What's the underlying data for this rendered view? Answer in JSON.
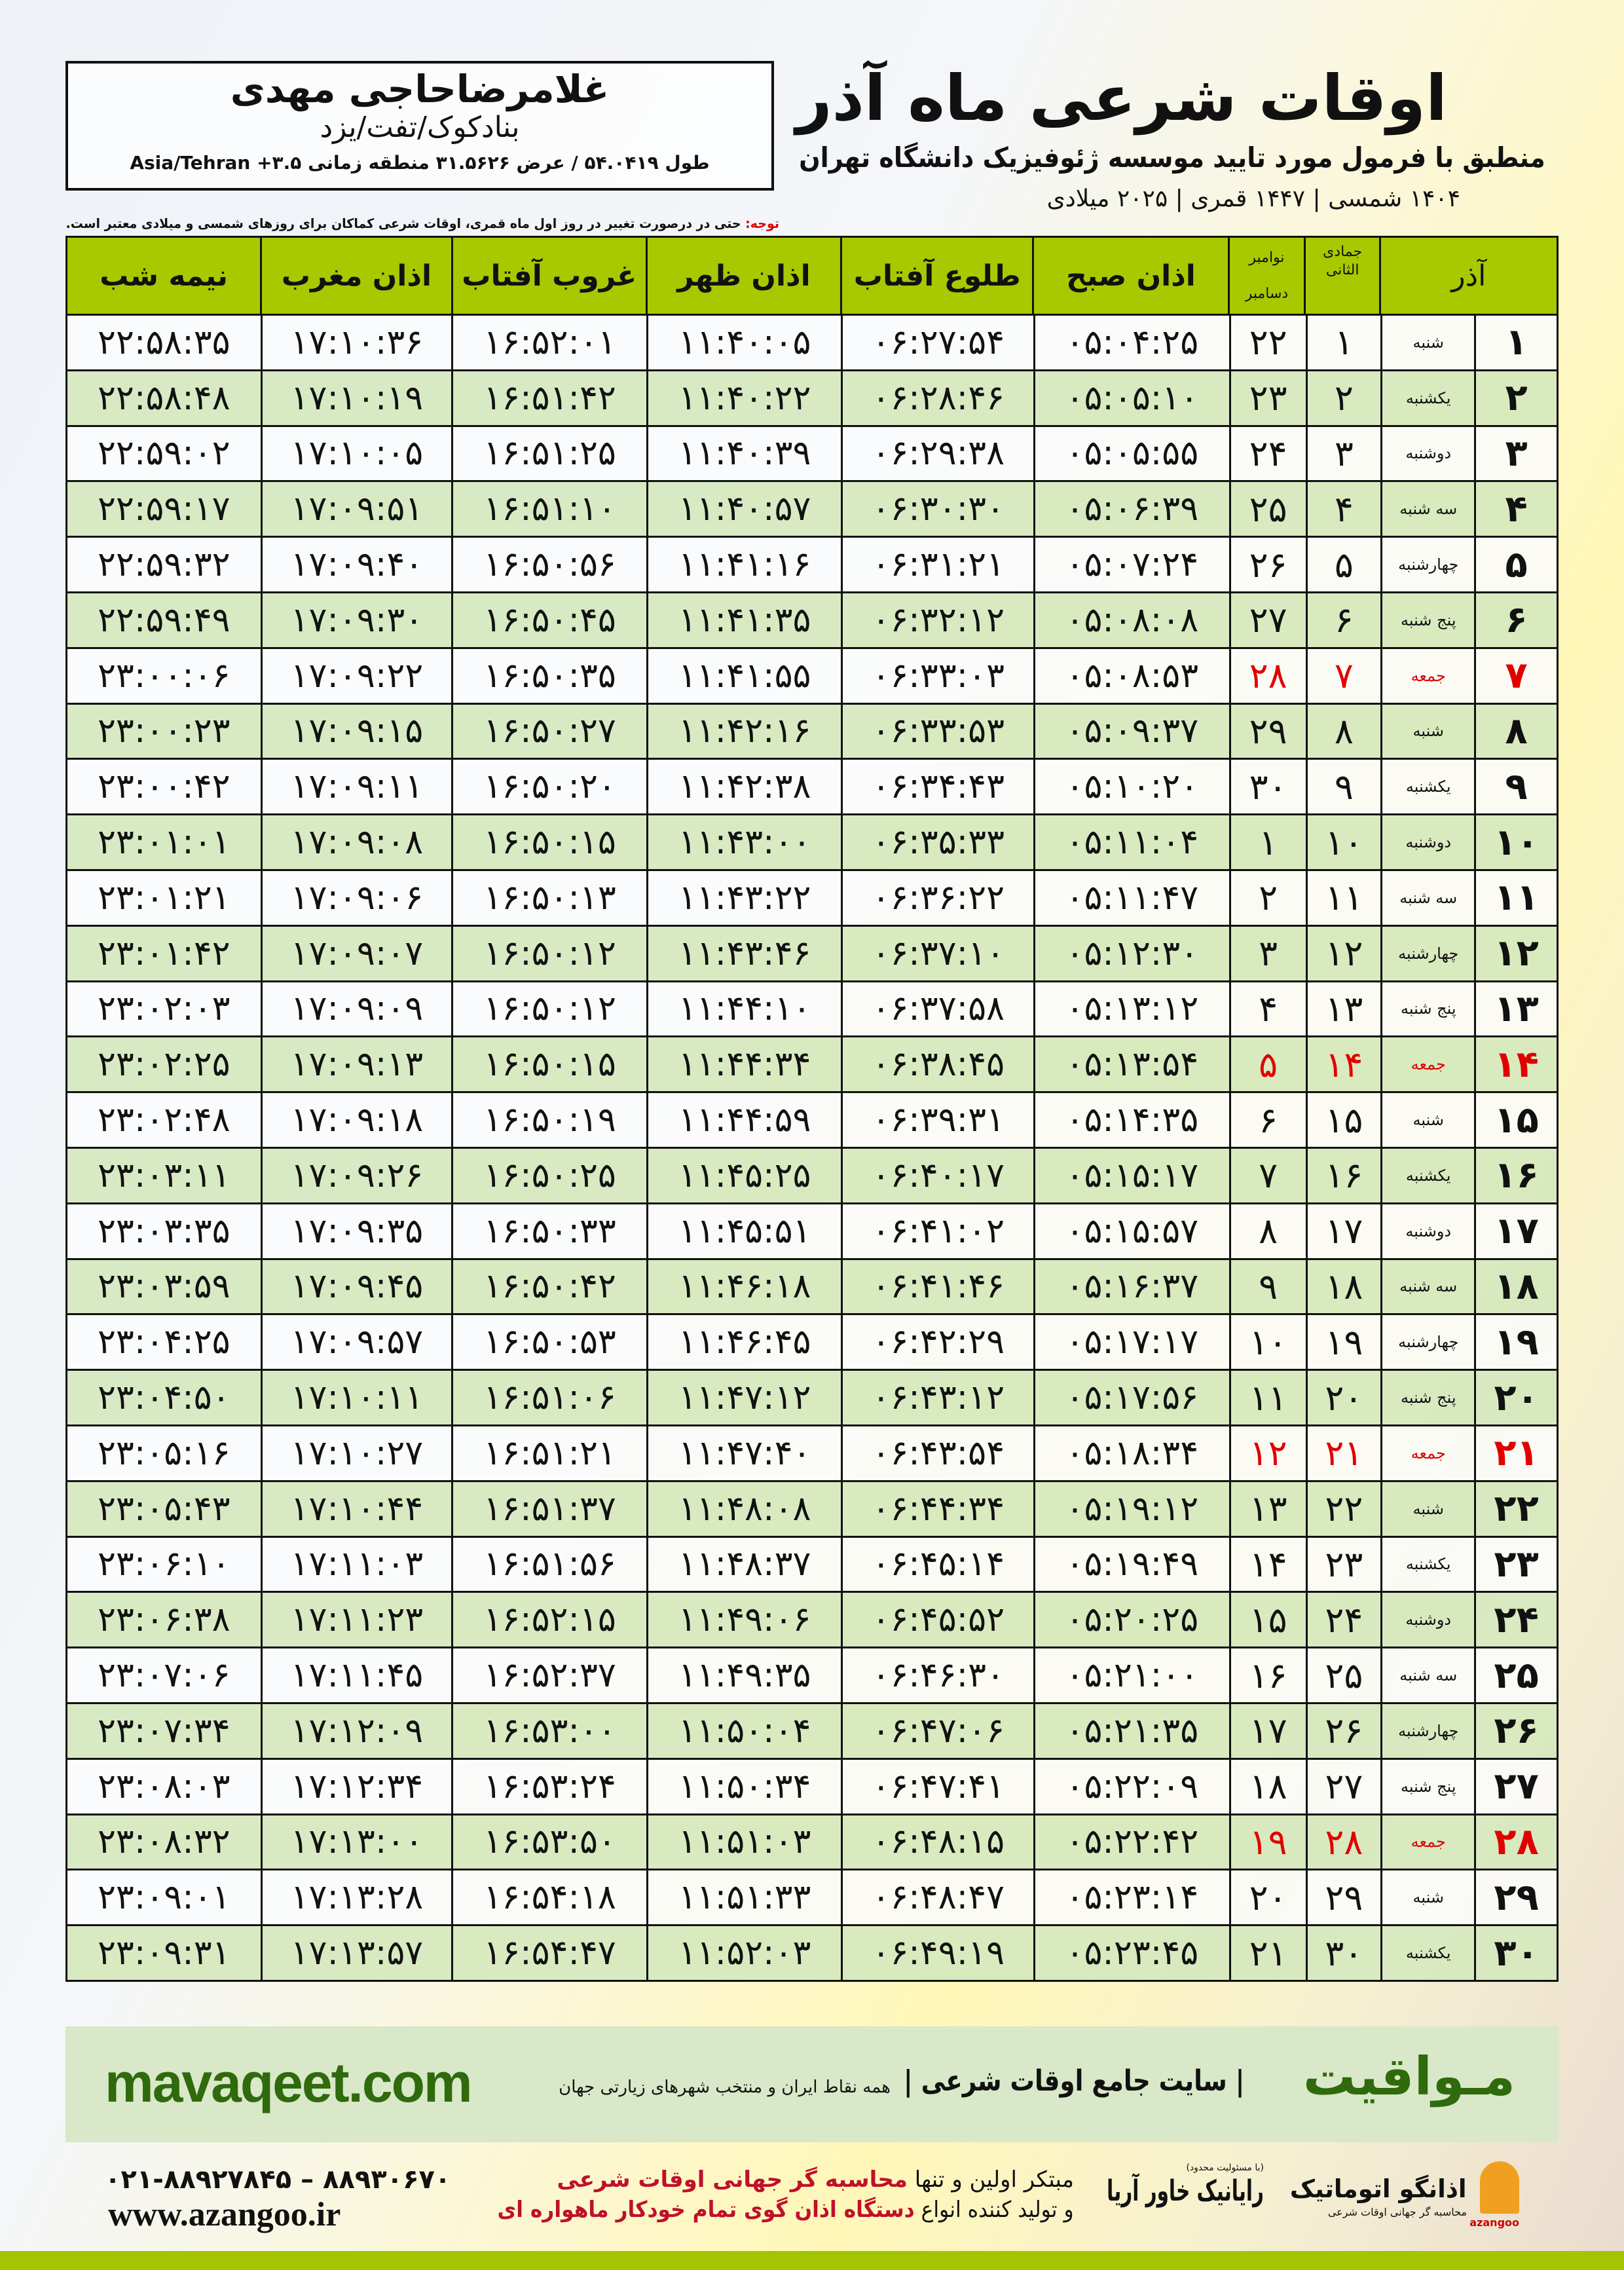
{
  "header": {
    "title": "اوقات شرعی ماه آذر",
    "subtitle": "منطبق با فرمول مورد تایید موسسه ژئوفیزیک دانشگاه تهران",
    "dates": "۱۴۰۴ شمسی | ۱۴۴۷ قمری | ۲۰۲۵ میلادی",
    "note_label": "توجه:",
    "note_text": " حتی در درصورت تغییر در روز اول ماه قمری، اوقات شرعی کماکان برای روزهای شمسی و میلادی معتبر است."
  },
  "info": {
    "name": "غلامرضاحاجی مهدی",
    "place": "بنادکوک/تفت/یزد",
    "coords": "طول ۵۴.۰۴۱۹ / عرض ۳۱.۵۶۲۶ منطقه زمانی ۳.۵+ Asia/Tehran"
  },
  "table": {
    "columns": {
      "midnight": "نیمه شب",
      "maghrib": "اذان مغرب",
      "sunset": "غروب آفتاب",
      "dhuhr": "اذان ظهر",
      "sunrise": "طلوع آفتاب",
      "fajr": "اذان صبح",
      "gregorian_top": "نوامبر",
      "gregorian_bottom": "دسامبر",
      "hijri": "جمادی الثانی",
      "month": "آذر"
    },
    "friday_color": "#e00000",
    "header_color": "#a8c800",
    "rows": [
      [
        "۱",
        "شنبه",
        "۱",
        "۲۲",
        "۰۵:۰۴:۲۵",
        "۰۶:۲۷:۵۴",
        "۱۱:۴۰:۰۵",
        "۱۶:۵۲:۰۱",
        "۱۷:۱۰:۳۶",
        "۲۲:۵۸:۳۵"
      ],
      [
        "۲",
        "یکشنبه",
        "۲",
        "۲۳",
        "۰۵:۰۵:۱۰",
        "۰۶:۲۸:۴۶",
        "۱۱:۴۰:۲۲",
        "۱۶:۵۱:۴۲",
        "۱۷:۱۰:۱۹",
        "۲۲:۵۸:۴۸"
      ],
      [
        "۳",
        "دوشنبه",
        "۳",
        "۲۴",
        "۰۵:۰۵:۵۵",
        "۰۶:۲۹:۳۸",
        "۱۱:۴۰:۳۹",
        "۱۶:۵۱:۲۵",
        "۱۷:۱۰:۰۵",
        "۲۲:۵۹:۰۲"
      ],
      [
        "۴",
        "سه شنبه",
        "۴",
        "۲۵",
        "۰۵:۰۶:۳۹",
        "۰۶:۳۰:۳۰",
        "۱۱:۴۰:۵۷",
        "۱۶:۵۱:۱۰",
        "۱۷:۰۹:۵۱",
        "۲۲:۵۹:۱۷"
      ],
      [
        "۵",
        "چهارشنبه",
        "۵",
        "۲۶",
        "۰۵:۰۷:۲۴",
        "۰۶:۳۱:۲۱",
        "۱۱:۴۱:۱۶",
        "۱۶:۵۰:۵۶",
        "۱۷:۰۹:۴۰",
        "۲۲:۵۹:۳۲"
      ],
      [
        "۶",
        "پنج شنبه",
        "۶",
        "۲۷",
        "۰۵:۰۸:۰۸",
        "۰۶:۳۲:۱۲",
        "۱۱:۴۱:۳۵",
        "۱۶:۵۰:۴۵",
        "۱۷:۰۹:۳۰",
        "۲۲:۵۹:۴۹"
      ],
      [
        "۷",
        "جمعه",
        "۷",
        "۲۸",
        "۰۵:۰۸:۵۳",
        "۰۶:۳۳:۰۳",
        "۱۱:۴۱:۵۵",
        "۱۶:۵۰:۳۵",
        "۱۷:۰۹:۲۲",
        "۲۳:۰۰:۰۶"
      ],
      [
        "۸",
        "شنبه",
        "۸",
        "۲۹",
        "۰۵:۰۹:۳۷",
        "۰۶:۳۳:۵۳",
        "۱۱:۴۲:۱۶",
        "۱۶:۵۰:۲۷",
        "۱۷:۰۹:۱۵",
        "۲۳:۰۰:۲۳"
      ],
      [
        "۹",
        "یکشنبه",
        "۹",
        "۳۰",
        "۰۵:۱۰:۲۰",
        "۰۶:۳۴:۴۳",
        "۱۱:۴۲:۳۸",
        "۱۶:۵۰:۲۰",
        "۱۷:۰۹:۱۱",
        "۲۳:۰۰:۴۲"
      ],
      [
        "۱۰",
        "دوشنبه",
        "۱۰",
        "۱",
        "۰۵:۱۱:۰۴",
        "۰۶:۳۵:۳۳",
        "۱۱:۴۳:۰۰",
        "۱۶:۵۰:۱۵",
        "۱۷:۰۹:۰۸",
        "۲۳:۰۱:۰۱"
      ],
      [
        "۱۱",
        "سه شنبه",
        "۱۱",
        "۲",
        "۰۵:۱۱:۴۷",
        "۰۶:۳۶:۲۲",
        "۱۱:۴۳:۲۲",
        "۱۶:۵۰:۱۳",
        "۱۷:۰۹:۰۶",
        "۲۳:۰۱:۲۱"
      ],
      [
        "۱۲",
        "چهارشنبه",
        "۱۲",
        "۳",
        "۰۵:۱۲:۳۰",
        "۰۶:۳۷:۱۰",
        "۱۱:۴۳:۴۶",
        "۱۶:۵۰:۱۲",
        "۱۷:۰۹:۰۷",
        "۲۳:۰۱:۴۲"
      ],
      [
        "۱۳",
        "پنج شنبه",
        "۱۳",
        "۴",
        "۰۵:۱۳:۱۲",
        "۰۶:۳۷:۵۸",
        "۱۱:۴۴:۱۰",
        "۱۶:۵۰:۱۲",
        "۱۷:۰۹:۰۹",
        "۲۳:۰۲:۰۳"
      ],
      [
        "۱۴",
        "جمعه",
        "۱۴",
        "۵",
        "۰۵:۱۳:۵۴",
        "۰۶:۳۸:۴۵",
        "۱۱:۴۴:۳۴",
        "۱۶:۵۰:۱۵",
        "۱۷:۰۹:۱۳",
        "۲۳:۰۲:۲۵"
      ],
      [
        "۱۵",
        "شنبه",
        "۱۵",
        "۶",
        "۰۵:۱۴:۳۵",
        "۰۶:۳۹:۳۱",
        "۱۱:۴۴:۵۹",
        "۱۶:۵۰:۱۹",
        "۱۷:۰۹:۱۸",
        "۲۳:۰۲:۴۸"
      ],
      [
        "۱۶",
        "یکشنبه",
        "۱۶",
        "۷",
        "۰۵:۱۵:۱۷",
        "۰۶:۴۰:۱۷",
        "۱۱:۴۵:۲۵",
        "۱۶:۵۰:۲۵",
        "۱۷:۰۹:۲۶",
        "۲۳:۰۳:۱۱"
      ],
      [
        "۱۷",
        "دوشنبه",
        "۱۷",
        "۸",
        "۰۵:۱۵:۵۷",
        "۰۶:۴۱:۰۲",
        "۱۱:۴۵:۵۱",
        "۱۶:۵۰:۳۳",
        "۱۷:۰۹:۳۵",
        "۲۳:۰۳:۳۵"
      ],
      [
        "۱۸",
        "سه شنبه",
        "۱۸",
        "۹",
        "۰۵:۱۶:۳۷",
        "۰۶:۴۱:۴۶",
        "۱۱:۴۶:۱۸",
        "۱۶:۵۰:۴۲",
        "۱۷:۰۹:۴۵",
        "۲۳:۰۳:۵۹"
      ],
      [
        "۱۹",
        "چهارشنبه",
        "۱۹",
        "۱۰",
        "۰۵:۱۷:۱۷",
        "۰۶:۴۲:۲۹",
        "۱۱:۴۶:۴۵",
        "۱۶:۵۰:۵۳",
        "۱۷:۰۹:۵۷",
        "۲۳:۰۴:۲۵"
      ],
      [
        "۲۰",
        "پنج شنبه",
        "۲۰",
        "۱۱",
        "۰۵:۱۷:۵۶",
        "۰۶:۴۳:۱۲",
        "۱۱:۴۷:۱۲",
        "۱۶:۵۱:۰۶",
        "۱۷:۱۰:۱۱",
        "۲۳:۰۴:۵۰"
      ],
      [
        "۲۱",
        "جمعه",
        "۲۱",
        "۱۲",
        "۰۵:۱۸:۳۴",
        "۰۶:۴۳:۵۴",
        "۱۱:۴۷:۴۰",
        "۱۶:۵۱:۲۱",
        "۱۷:۱۰:۲۷",
        "۲۳:۰۵:۱۶"
      ],
      [
        "۲۲",
        "شنبه",
        "۲۲",
        "۱۳",
        "۰۵:۱۹:۱۲",
        "۰۶:۴۴:۳۴",
        "۱۱:۴۸:۰۸",
        "۱۶:۵۱:۳۷",
        "۱۷:۱۰:۴۴",
        "۲۳:۰۵:۴۳"
      ],
      [
        "۲۳",
        "یکشنبه",
        "۲۳",
        "۱۴",
        "۰۵:۱۹:۴۹",
        "۰۶:۴۵:۱۴",
        "۱۱:۴۸:۳۷",
        "۱۶:۵۱:۵۶",
        "۱۷:۱۱:۰۳",
        "۲۳:۰۶:۱۰"
      ],
      [
        "۲۴",
        "دوشنبه",
        "۲۴",
        "۱۵",
        "۰۵:۲۰:۲۵",
        "۰۶:۴۵:۵۲",
        "۱۱:۴۹:۰۶",
        "۱۶:۵۲:۱۵",
        "۱۷:۱۱:۲۳",
        "۲۳:۰۶:۳۸"
      ],
      [
        "۲۵",
        "سه شنبه",
        "۲۵",
        "۱۶",
        "۰۵:۲۱:۰۰",
        "۰۶:۴۶:۳۰",
        "۱۱:۴۹:۳۵",
        "۱۶:۵۲:۳۷",
        "۱۷:۱۱:۴۵",
        "۲۳:۰۷:۰۶"
      ],
      [
        "۲۶",
        "چهارشنبه",
        "۲۶",
        "۱۷",
        "۰۵:۲۱:۳۵",
        "۰۶:۴۷:۰۶",
        "۱۱:۵۰:۰۴",
        "۱۶:۵۳:۰۰",
        "۱۷:۱۲:۰۹",
        "۲۳:۰۷:۳۴"
      ],
      [
        "۲۷",
        "پنج شنبه",
        "۲۷",
        "۱۸",
        "۰۵:۲۲:۰۹",
        "۰۶:۴۷:۴۱",
        "۱۱:۵۰:۳۴",
        "۱۶:۵۳:۲۴",
        "۱۷:۱۲:۳۴",
        "۲۳:۰۸:۰۳"
      ],
      [
        "۲۸",
        "جمعه",
        "۲۸",
        "۱۹",
        "۰۵:۲۲:۴۲",
        "۰۶:۴۸:۱۵",
        "۱۱:۵۱:۰۳",
        "۱۶:۵۳:۵۰",
        "۱۷:۱۳:۰۰",
        "۲۳:۰۸:۳۲"
      ],
      [
        "۲۹",
        "شنبه",
        "۲۹",
        "۲۰",
        "۰۵:۲۳:۱۴",
        "۰۶:۴۸:۴۷",
        "۱۱:۵۱:۳۳",
        "۱۶:۵۴:۱۸",
        "۱۷:۱۳:۲۸",
        "۲۳:۰۹:۰۱"
      ],
      [
        "۳۰",
        "یکشنبه",
        "۳۰",
        "۲۱",
        "۰۵:۲۳:۴۵",
        "۰۶:۴۹:۱۹",
        "۱۱:۵۲:۰۳",
        "۱۶:۵۴:۴۷",
        "۱۷:۱۳:۵۷",
        "۲۳:۰۹:۳۱"
      ]
    ]
  },
  "footer": {
    "brand": "مـواقیت",
    "tagline": "| سایت جامع اوقات شرعی |",
    "tagline2": "همه نقاط ایران و منتخب شهرهای زیارتی جهان",
    "site": "mavaqeet.com",
    "phones": "۰۲۱-۸۸۹۲۷۸۴۵ – ۸۸۹۳۰۶۷۰",
    "azangoo_site": "www.azangoo.ir",
    "promo1_a": "مبتکر اولین و تنها ",
    "promo1_b": "محاسبه گر جهانی اوقات شرعی",
    "promo2_a": "و تولید کننده انواع ",
    "promo2_b": "دستگاه اذان گوی تمام خودکار ماهواره ای",
    "rayan_small": "(با مسئولیت محدود)",
    "rayan": "رایانیک خاور آریا",
    "azangoo_logo": "اذانگو اتوماتیک",
    "azangoo_logo_sub": "محاسبه گر جهانی اوقات شرعی",
    "azangoo_en": "azangoo",
    "band_color": "#d9e8c8",
    "brand_color": "#2f6a0c"
  }
}
